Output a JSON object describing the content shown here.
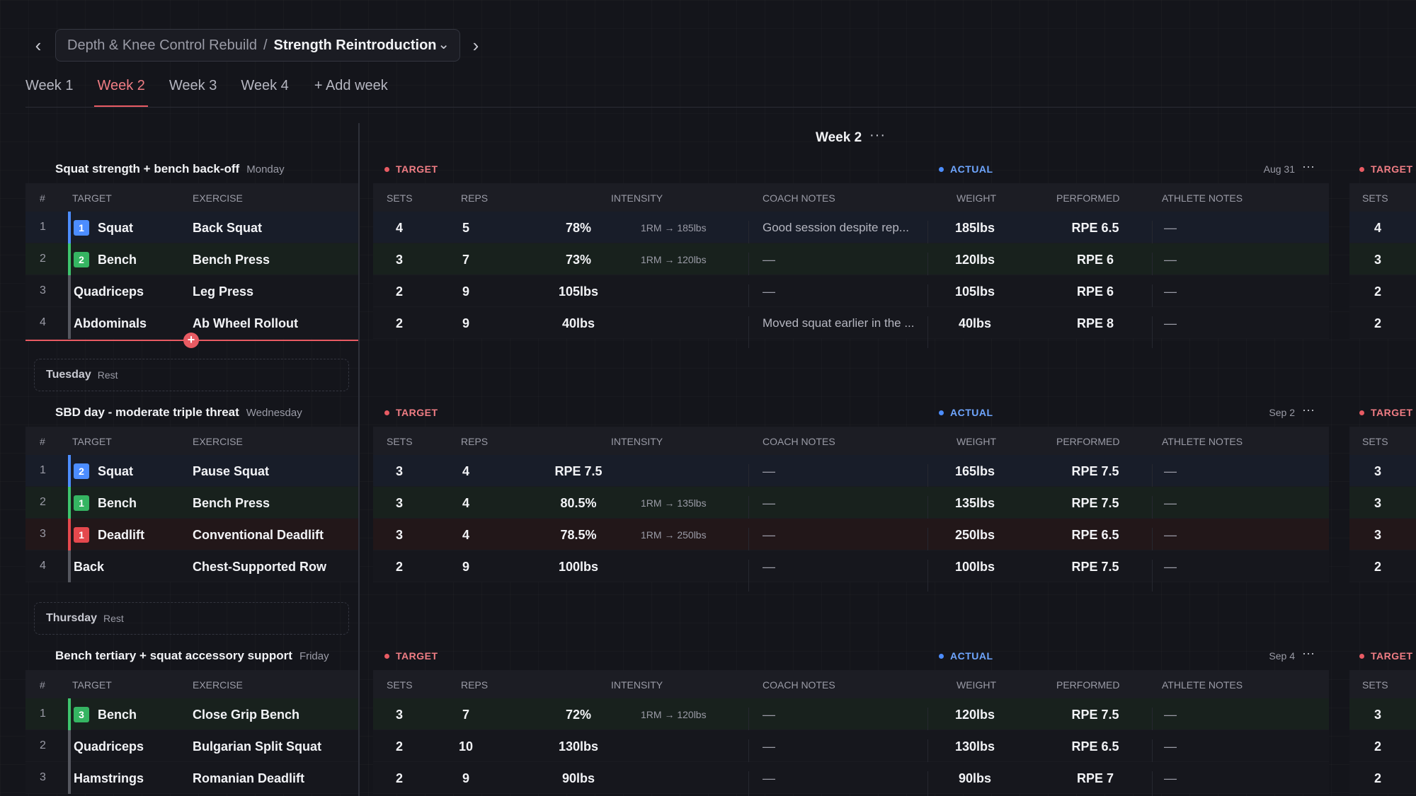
{
  "breadcrumb": {
    "program": "Depth & Knee Control Rebuild",
    "separator": "/",
    "block": "Strength Reintroduction"
  },
  "tabs": [
    "Week 1",
    "Week 2",
    "Week 3",
    "Week 4"
  ],
  "add_week": "+ Add week",
  "week_title": "Week 2",
  "ellipsis": "···",
  "left_headers": {
    "num": "#",
    "target": "TARGET",
    "exercise": "EXERCISE"
  },
  "right_headers": {
    "sets": "SETS",
    "reps": "REPS",
    "intensity": "INTENSITY",
    "coach_notes": "COACH NOTES",
    "weight": "WEIGHT",
    "performed": "PERFORMED",
    "athlete_notes": "ATHLETE NOTES"
  },
  "labels": {
    "target": "TARGET",
    "actual": "ACTUAL"
  },
  "days": [
    {
      "title": "Squat strength + bench back-off",
      "day": "Monday",
      "date": "Aug 31",
      "rows": [
        {
          "n": "1",
          "chip": "1",
          "target": "Squat",
          "exercise": "Back Squat",
          "sets": "4",
          "reps": "5",
          "intensity": "78%",
          "rm": "1RM → 185lbs",
          "coach": "Good session despite rep...",
          "weight": "185lbs",
          "performed": "RPE 6.5",
          "athlete": "—"
        },
        {
          "n": "2",
          "chip": "2",
          "target": "Bench",
          "exercise": "Bench Press",
          "sets": "3",
          "reps": "7",
          "intensity": "73%",
          "rm": "1RM → 120lbs",
          "coach": "—",
          "weight": "120lbs",
          "performed": "RPE 6",
          "athlete": "—"
        },
        {
          "n": "3",
          "chip": "",
          "target": "Quadriceps",
          "exercise": "Leg Press",
          "sets": "2",
          "reps": "9",
          "intensity": "105lbs",
          "rm": "",
          "coach": "—",
          "weight": "105lbs",
          "performed": "RPE 6",
          "athlete": "—"
        },
        {
          "n": "4",
          "chip": "",
          "target": "Abdominals",
          "exercise": "Ab Wheel Rollout",
          "sets": "2",
          "reps": "9",
          "intensity": "40lbs",
          "rm": "",
          "coach": "Moved squat earlier in the ...",
          "weight": "40lbs",
          "performed": "RPE 8",
          "athlete": "—"
        }
      ],
      "next_sets": [
        "4",
        "3",
        "2",
        "2"
      ]
    },
    {
      "title": "SBD day - moderate triple threat",
      "day": "Wednesday",
      "date": "Sep 2",
      "rows": [
        {
          "n": "1",
          "chip": "2",
          "target": "Squat",
          "exercise": "Pause Squat",
          "sets": "3",
          "reps": "4",
          "intensity": "RPE 7.5",
          "rm": "",
          "coach": "—",
          "weight": "165lbs",
          "performed": "RPE 7.5",
          "athlete": "—"
        },
        {
          "n": "2",
          "chip": "1",
          "target": "Bench",
          "exercise": "Bench Press",
          "sets": "3",
          "reps": "4",
          "intensity": "80.5%",
          "rm": "1RM → 135lbs",
          "coach": "—",
          "weight": "135lbs",
          "performed": "RPE 7.5",
          "athlete": "—"
        },
        {
          "n": "3",
          "chip": "1",
          "target": "Deadlift",
          "exercise": "Conventional Deadlift",
          "sets": "3",
          "reps": "4",
          "intensity": "78.5%",
          "rm": "1RM → 250lbs",
          "coach": "—",
          "weight": "250lbs",
          "performed": "RPE 6.5",
          "athlete": "—"
        },
        {
          "n": "4",
          "chip": "",
          "target": "Back",
          "exercise": "Chest-Supported Row",
          "sets": "2",
          "reps": "9",
          "intensity": "100lbs",
          "rm": "",
          "coach": "—",
          "weight": "100lbs",
          "performed": "RPE 7.5",
          "athlete": "—"
        }
      ],
      "next_sets": [
        "3",
        "3",
        "3",
        "2"
      ]
    },
    {
      "title": "Bench tertiary + squat accessory support",
      "day": "Friday",
      "date": "Sep 4",
      "rows": [
        {
          "n": "1",
          "chip": "3",
          "target": "Bench",
          "exercise": "Close Grip Bench",
          "sets": "3",
          "reps": "7",
          "intensity": "72%",
          "rm": "1RM → 120lbs",
          "coach": "—",
          "weight": "120lbs",
          "performed": "RPE 7.5",
          "athlete": "—"
        },
        {
          "n": "2",
          "chip": "",
          "target": "Quadriceps",
          "exercise": "Bulgarian Split Squat",
          "sets": "2",
          "reps": "10",
          "intensity": "130lbs",
          "rm": "",
          "coach": "—",
          "weight": "130lbs",
          "performed": "RPE 6.5",
          "athlete": "—"
        },
        {
          "n": "3",
          "chip": "",
          "target": "Hamstrings",
          "exercise": "Romanian Deadlift",
          "sets": "2",
          "reps": "9",
          "intensity": "90lbs",
          "rm": "",
          "coach": "—",
          "weight": "90lbs",
          "performed": "RPE 7",
          "athlete": "—"
        }
      ],
      "next_sets": [
        "3",
        "2",
        "2"
      ]
    }
  ],
  "rest_days": [
    {
      "day": "Tuesday",
      "label": "Rest"
    },
    {
      "day": "Thursday",
      "label": "Rest"
    }
  ],
  "colors": {
    "squat": "#4c8dff",
    "bench": "#3ec46d",
    "deadlift": "#e5484d",
    "accent": "#e85b63",
    "actual": "#4c8dff"
  }
}
